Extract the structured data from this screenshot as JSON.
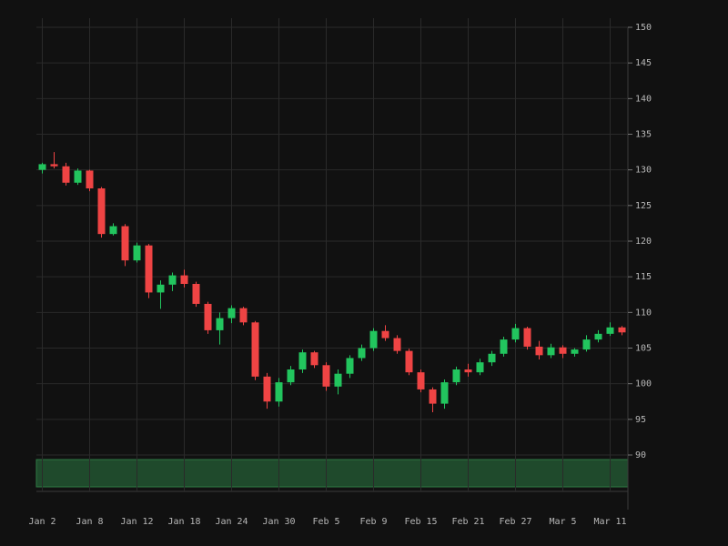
{
  "chart_data": {
    "type": "candlestick",
    "categories": [
      "Jan 2",
      null,
      null,
      null,
      "Jan 8",
      null,
      null,
      null,
      "Jan 12",
      null,
      null,
      null,
      "Jan 18",
      null,
      null,
      null,
      "Jan 24",
      null,
      null,
      null,
      "Jan 30",
      null,
      null,
      null,
      "Feb 5",
      null,
      null,
      null,
      "Feb 9",
      null,
      null,
      null,
      "Feb 15",
      null,
      null,
      null,
      "Feb 21",
      null,
      null,
      null,
      "Feb 27",
      null,
      null,
      null,
      "Mar 5",
      null,
      null,
      null,
      "Mar 11",
      null
    ],
    "open": [
      130.0,
      130.8,
      130.5,
      128.2,
      129.9,
      127.4,
      121.0,
      122.1,
      117.3,
      119.4,
      112.8,
      113.9,
      115.2,
      114.0,
      111.2,
      107.5,
      109.2,
      110.6,
      108.6,
      101.0,
      97.5,
      100.2,
      102.0,
      104.4,
      102.6,
      99.6,
      101.4,
      103.6,
      105.0,
      107.4,
      106.4,
      104.6,
      101.6,
      99.2,
      97.2,
      100.2,
      102.0,
      101.6,
      103.0,
      104.2,
      106.2,
      107.8,
      105.2,
      104.0,
      105.1,
      104.2,
      104.8,
      106.2,
      107.0,
      107.9
    ],
    "high": [
      131.0,
      132.5,
      131.0,
      130.2,
      130.0,
      127.6,
      122.5,
      122.4,
      119.8,
      119.6,
      114.5,
      115.6,
      116.0,
      114.3,
      111.5,
      110.0,
      111.0,
      110.8,
      108.8,
      101.5,
      100.8,
      102.5,
      104.8,
      104.6,
      103.0,
      102.0,
      104.0,
      105.5,
      107.8,
      108.2,
      106.8,
      104.9,
      102.0,
      99.5,
      100.6,
      102.4,
      102.8,
      103.5,
      104.6,
      106.6,
      108.4,
      108.0,
      106.0,
      105.6,
      105.4,
      105.0,
      106.8,
      107.5,
      108.6,
      108.1
    ],
    "low": [
      129.5,
      130.2,
      127.8,
      127.9,
      127.0,
      120.5,
      120.8,
      116.5,
      117.0,
      112.0,
      110.5,
      113.0,
      113.5,
      110.8,
      107.0,
      105.5,
      108.5,
      108.2,
      100.5,
      96.5,
      96.8,
      99.8,
      101.5,
      102.2,
      99.0,
      98.5,
      100.8,
      103.2,
      104.6,
      106.0,
      104.2,
      101.2,
      98.8,
      96.0,
      96.5,
      99.8,
      101.0,
      101.2,
      102.5,
      103.8,
      105.8,
      104.8,
      103.4,
      103.6,
      103.6,
      103.8,
      104.5,
      105.8,
      106.7,
      106.8
    ],
    "close": [
      130.8,
      130.5,
      128.2,
      129.9,
      127.4,
      121.0,
      122.1,
      117.3,
      119.4,
      112.8,
      113.9,
      115.2,
      114.0,
      111.2,
      107.5,
      109.2,
      110.6,
      108.6,
      101.0,
      97.5,
      100.2,
      102.0,
      104.4,
      102.6,
      99.6,
      101.4,
      103.6,
      105.0,
      107.4,
      106.4,
      104.6,
      101.6,
      99.2,
      97.2,
      100.2,
      102.0,
      101.6,
      103.0,
      104.2,
      106.2,
      107.8,
      105.2,
      104.0,
      105.1,
      104.2,
      104.8,
      106.2,
      107.0,
      107.9,
      107.2
    ],
    "up_color": "#22c55e",
    "down_color": "#ef4444",
    "ylim": [
      90,
      150
    ],
    "yticks": [
      90,
      95,
      100,
      105,
      110,
      115,
      120,
      125,
      130,
      135,
      140,
      145,
      150
    ],
    "grid": true
  }
}
